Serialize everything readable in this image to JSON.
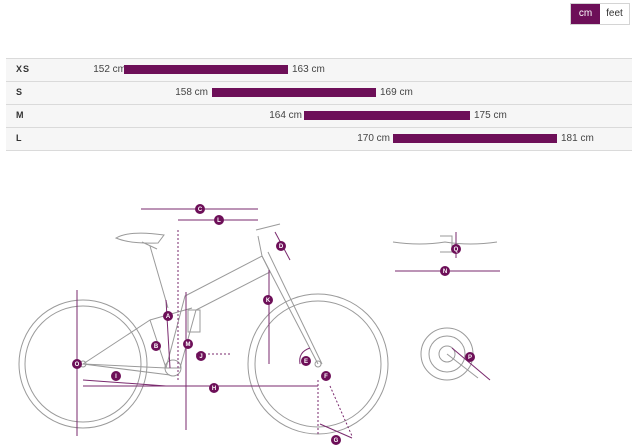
{
  "unit_toggle": {
    "cm_label": "cm",
    "feet_label": "feet",
    "selected": "cm"
  },
  "sizes": [
    {
      "label": "XS",
      "min": "152 cm",
      "max": "163 cm",
      "range_cm": [
        152,
        163
      ]
    },
    {
      "label": "S",
      "min": "158 cm",
      "max": "169 cm",
      "range_cm": [
        158,
        169
      ]
    },
    {
      "label": "M",
      "min": "164 cm",
      "max": "175 cm",
      "range_cm": [
        164,
        175
      ]
    },
    {
      "label": "L",
      "min": "170 cm",
      "max": "181 cm",
      "range_cm": [
        170,
        181
      ]
    }
  ],
  "geometry_markers": [
    "A",
    "B",
    "C",
    "D",
    "E",
    "F",
    "G",
    "H",
    "I",
    "J",
    "K",
    "L",
    "M",
    "N",
    "O",
    "P",
    "Q"
  ],
  "colors": {
    "accent": "#6d0f58",
    "line": "#9a9a9a"
  }
}
